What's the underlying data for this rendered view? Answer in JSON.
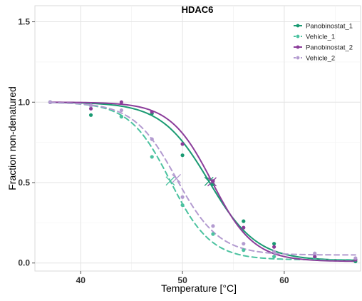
{
  "chart_data": {
    "type": "line",
    "title": "HDAC6",
    "xlabel": "Temperature [°C]",
    "ylabel": "Fraction non-denatured",
    "xlim": [
      35.5,
      67.5
    ],
    "ylim": [
      -0.05,
      1.6
    ],
    "x_ticks": [
      40,
      50,
      60
    ],
    "y_ticks": [
      0.0,
      0.5,
      1.0,
      1.5
    ],
    "x_tick_labels": [
      "40",
      "50",
      "60"
    ],
    "y_tick_labels": [
      "0.0",
      "0.5",
      "1.0",
      "1.5"
    ],
    "grid": true,
    "legend": "top-right",
    "series": [
      {
        "name": "Panobinostat_1",
        "color": "#1a9a72",
        "dashed": false,
        "points": [
          {
            "x": 37,
            "y": 1.0
          },
          {
            "x": 41,
            "y": 0.92
          },
          {
            "x": 44,
            "y": 0.91
          },
          {
            "x": 47,
            "y": 0.93
          },
          {
            "x": 50,
            "y": 0.67
          },
          {
            "x": 53,
            "y": 0.49
          },
          {
            "x": 56,
            "y": 0.26
          },
          {
            "x": 59,
            "y": 0.12
          },
          {
            "x": 63,
            "y": 0.03
          },
          {
            "x": 67,
            "y": 0.01
          }
        ],
        "fit": {
          "tm": 52.6,
          "slope": 2.35,
          "top": 1.0,
          "bottom": 0.015
        }
      },
      {
        "name": "Vehicle_1",
        "color": "#4cc2a0",
        "dashed": true,
        "points": [
          {
            "x": 37,
            "y": 1.0
          },
          {
            "x": 41,
            "y": 0.98
          },
          {
            "x": 44,
            "y": 0.91
          },
          {
            "x": 47,
            "y": 0.66
          },
          {
            "x": 50,
            "y": 0.36
          },
          {
            "x": 53,
            "y": 0.18
          },
          {
            "x": 56,
            "y": 0.08
          },
          {
            "x": 59,
            "y": 0.04
          },
          {
            "x": 63,
            "y": 0.03
          },
          {
            "x": 67,
            "y": 0.02
          }
        ],
        "fit": {
          "tm": 48.8,
          "slope": 2.0,
          "top": 1.0,
          "bottom": 0.02
        }
      },
      {
        "name": "Panobinostat_2",
        "color": "#8b3d9a",
        "dashed": false,
        "points": [
          {
            "x": 37,
            "y": 1.0
          },
          {
            "x": 41,
            "y": 0.96
          },
          {
            "x": 44,
            "y": 1.0
          },
          {
            "x": 47,
            "y": 0.94
          },
          {
            "x": 50,
            "y": 0.74
          },
          {
            "x": 53,
            "y": 0.51
          },
          {
            "x": 56,
            "y": 0.22
          },
          {
            "x": 59,
            "y": 0.1
          },
          {
            "x": 63,
            "y": 0.04
          },
          {
            "x": 67,
            "y": 0.02
          }
        ],
        "fit": {
          "tm": 52.9,
          "slope": 2.05,
          "top": 1.0,
          "bottom": 0.01
        }
      },
      {
        "name": "Vehicle_2",
        "color": "#b39bd0",
        "dashed": true,
        "points": [
          {
            "x": 37,
            "y": 1.0
          },
          {
            "x": 41,
            "y": 0.98
          },
          {
            "x": 44,
            "y": 0.95
          },
          {
            "x": 47,
            "y": 0.77
          },
          {
            "x": 50,
            "y": 0.41
          },
          {
            "x": 53,
            "y": 0.23
          },
          {
            "x": 56,
            "y": 0.12
          },
          {
            "x": 59,
            "y": 0.07
          },
          {
            "x": 63,
            "y": 0.06
          },
          {
            "x": 67,
            "y": 0.03
          }
        ],
        "fit": {
          "tm": 49.4,
          "slope": 2.1,
          "top": 1.0,
          "bottom": 0.05
        }
      }
    ]
  }
}
